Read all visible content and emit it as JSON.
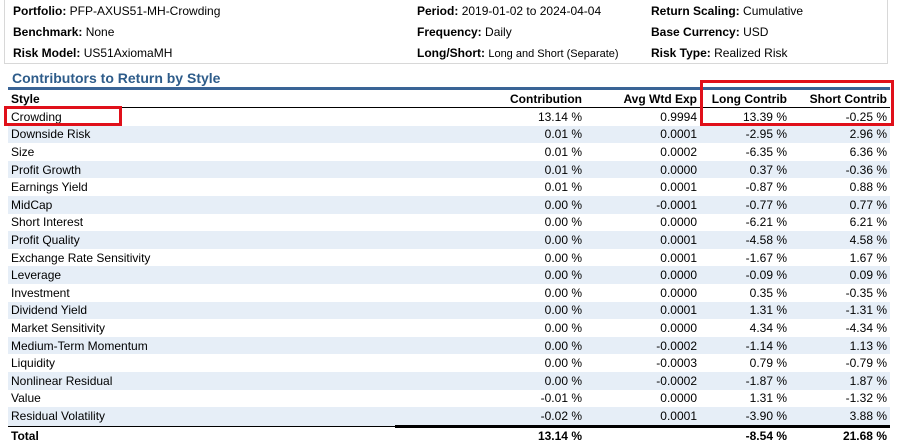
{
  "header": {
    "portfolio_label": "Portfolio:",
    "portfolio_value": "PFP-AXUS51-MH-Crowding",
    "benchmark_label": "Benchmark:",
    "benchmark_value": "None",
    "risk_model_label": "Risk Model:",
    "risk_model_value": "US51AxiomaMH",
    "period_label": "Period:",
    "period_value": "2019-01-02 to 2024-04-04",
    "frequency_label": "Frequency:",
    "frequency_value": "Daily",
    "longshort_label": "Long/Short:",
    "longshort_value": "Long and Short (Separate)",
    "return_scaling_label": "Return Scaling:",
    "return_scaling_value": "Cumulative",
    "base_currency_label": "Base Currency:",
    "base_currency_value": "USD",
    "risk_type_label": "Risk Type:",
    "risk_type_value": "Realized Risk"
  },
  "section_title": "Contributors to Return by Style",
  "columns": [
    "Style",
    "Contribution",
    "Avg Wtd Exp",
    "Long Contrib",
    "Short Contrib"
  ],
  "rows": [
    [
      "Crowding",
      "13.14 %",
      "0.9994",
      "13.39 %",
      "-0.25 %"
    ],
    [
      "Downside Risk",
      "0.01 %",
      "0.0001",
      "-2.95 %",
      "2.96 %"
    ],
    [
      "Size",
      "0.01 %",
      "0.0002",
      "-6.35 %",
      "6.36 %"
    ],
    [
      "Profit Growth",
      "0.01 %",
      "0.0000",
      "0.37 %",
      "-0.36 %"
    ],
    [
      "Earnings Yield",
      "0.01 %",
      "0.0001",
      "-0.87 %",
      "0.88 %"
    ],
    [
      "MidCap",
      "0.00 %",
      "-0.0001",
      "-0.77 %",
      "0.77 %"
    ],
    [
      "Short Interest",
      "0.00 %",
      "0.0000",
      "-6.21 %",
      "6.21 %"
    ],
    [
      "Profit Quality",
      "0.00 %",
      "0.0001",
      "-4.58 %",
      "4.58 %"
    ],
    [
      "Exchange Rate Sensitivity",
      "0.00 %",
      "0.0001",
      "-1.67 %",
      "1.67 %"
    ],
    [
      "Leverage",
      "0.00 %",
      "0.0000",
      "-0.09 %",
      "0.09 %"
    ],
    [
      "Investment",
      "0.00 %",
      "0.0000",
      "0.35 %",
      "-0.35 %"
    ],
    [
      "Dividend Yield",
      "0.00 %",
      "0.0001",
      "1.31 %",
      "-1.31 %"
    ],
    [
      "Market Sensitivity",
      "0.00 %",
      "0.0000",
      "4.34 %",
      "-4.34 %"
    ],
    [
      "Medium-Term Momentum",
      "0.00 %",
      "-0.0002",
      "-1.14 %",
      "1.13 %"
    ],
    [
      "Liquidity",
      "0.00 %",
      "-0.0003",
      "0.79 %",
      "-0.79 %"
    ],
    [
      "Nonlinear Residual",
      "0.00 %",
      "-0.0002",
      "-1.87 %",
      "1.87 %"
    ],
    [
      "Value",
      "-0.01 %",
      "0.0000",
      "1.31 %",
      "-1.32 %"
    ],
    [
      "Residual Volatility",
      "-0.02 %",
      "0.0001",
      "-3.90 %",
      "3.88 %"
    ]
  ],
  "total": [
    "Total",
    "13.14 %",
    "",
    "-8.54 %",
    "21.68 %"
  ],
  "colors": {
    "title": "#2e5c8a",
    "row_alt": "#e6eef7",
    "highlight": "#e0101a"
  }
}
